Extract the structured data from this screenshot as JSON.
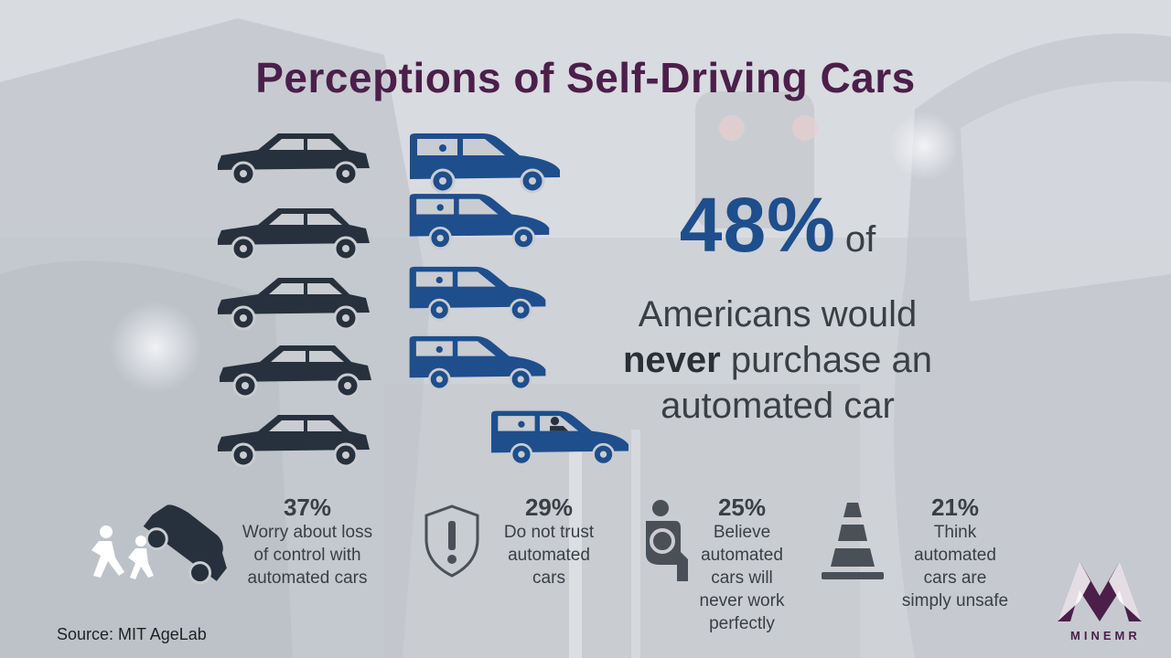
{
  "title": "Perceptions of Self-Driving Cars",
  "headline": {
    "percent": "48%",
    "of": "of",
    "line1": "Americans would",
    "line2_bold": "never",
    "line2_rest": " purchase an",
    "line3": "automated car"
  },
  "stats": [
    {
      "percent": "37%",
      "lines": [
        "Worry about loss",
        "of control with",
        "automated cars"
      ],
      "icon": "crash-pedestrian-icon"
    },
    {
      "percent": "29%",
      "lines": [
        "Do not trust",
        "automated",
        "cars"
      ],
      "icon": "shield-warning-icon"
    },
    {
      "percent": "25%",
      "lines": [
        "Believe",
        "automated",
        "cars will",
        "never work",
        "perfectly"
      ],
      "icon": "driver-icon"
    },
    {
      "percent": "21%",
      "lines": [
        "Think",
        "automated",
        "cars are",
        "simply unsafe"
      ],
      "icon": "traffic-cone-icon"
    }
  ],
  "source": "Source: MIT AgeLab",
  "logo": {
    "text": "MINEMR",
    "icon": "minemr-logo-icon"
  },
  "colors": {
    "title": "#4b1f4a",
    "accent_blue": "#1e4e8c",
    "dark_car": "#27313d",
    "text": "#3a3f44"
  }
}
